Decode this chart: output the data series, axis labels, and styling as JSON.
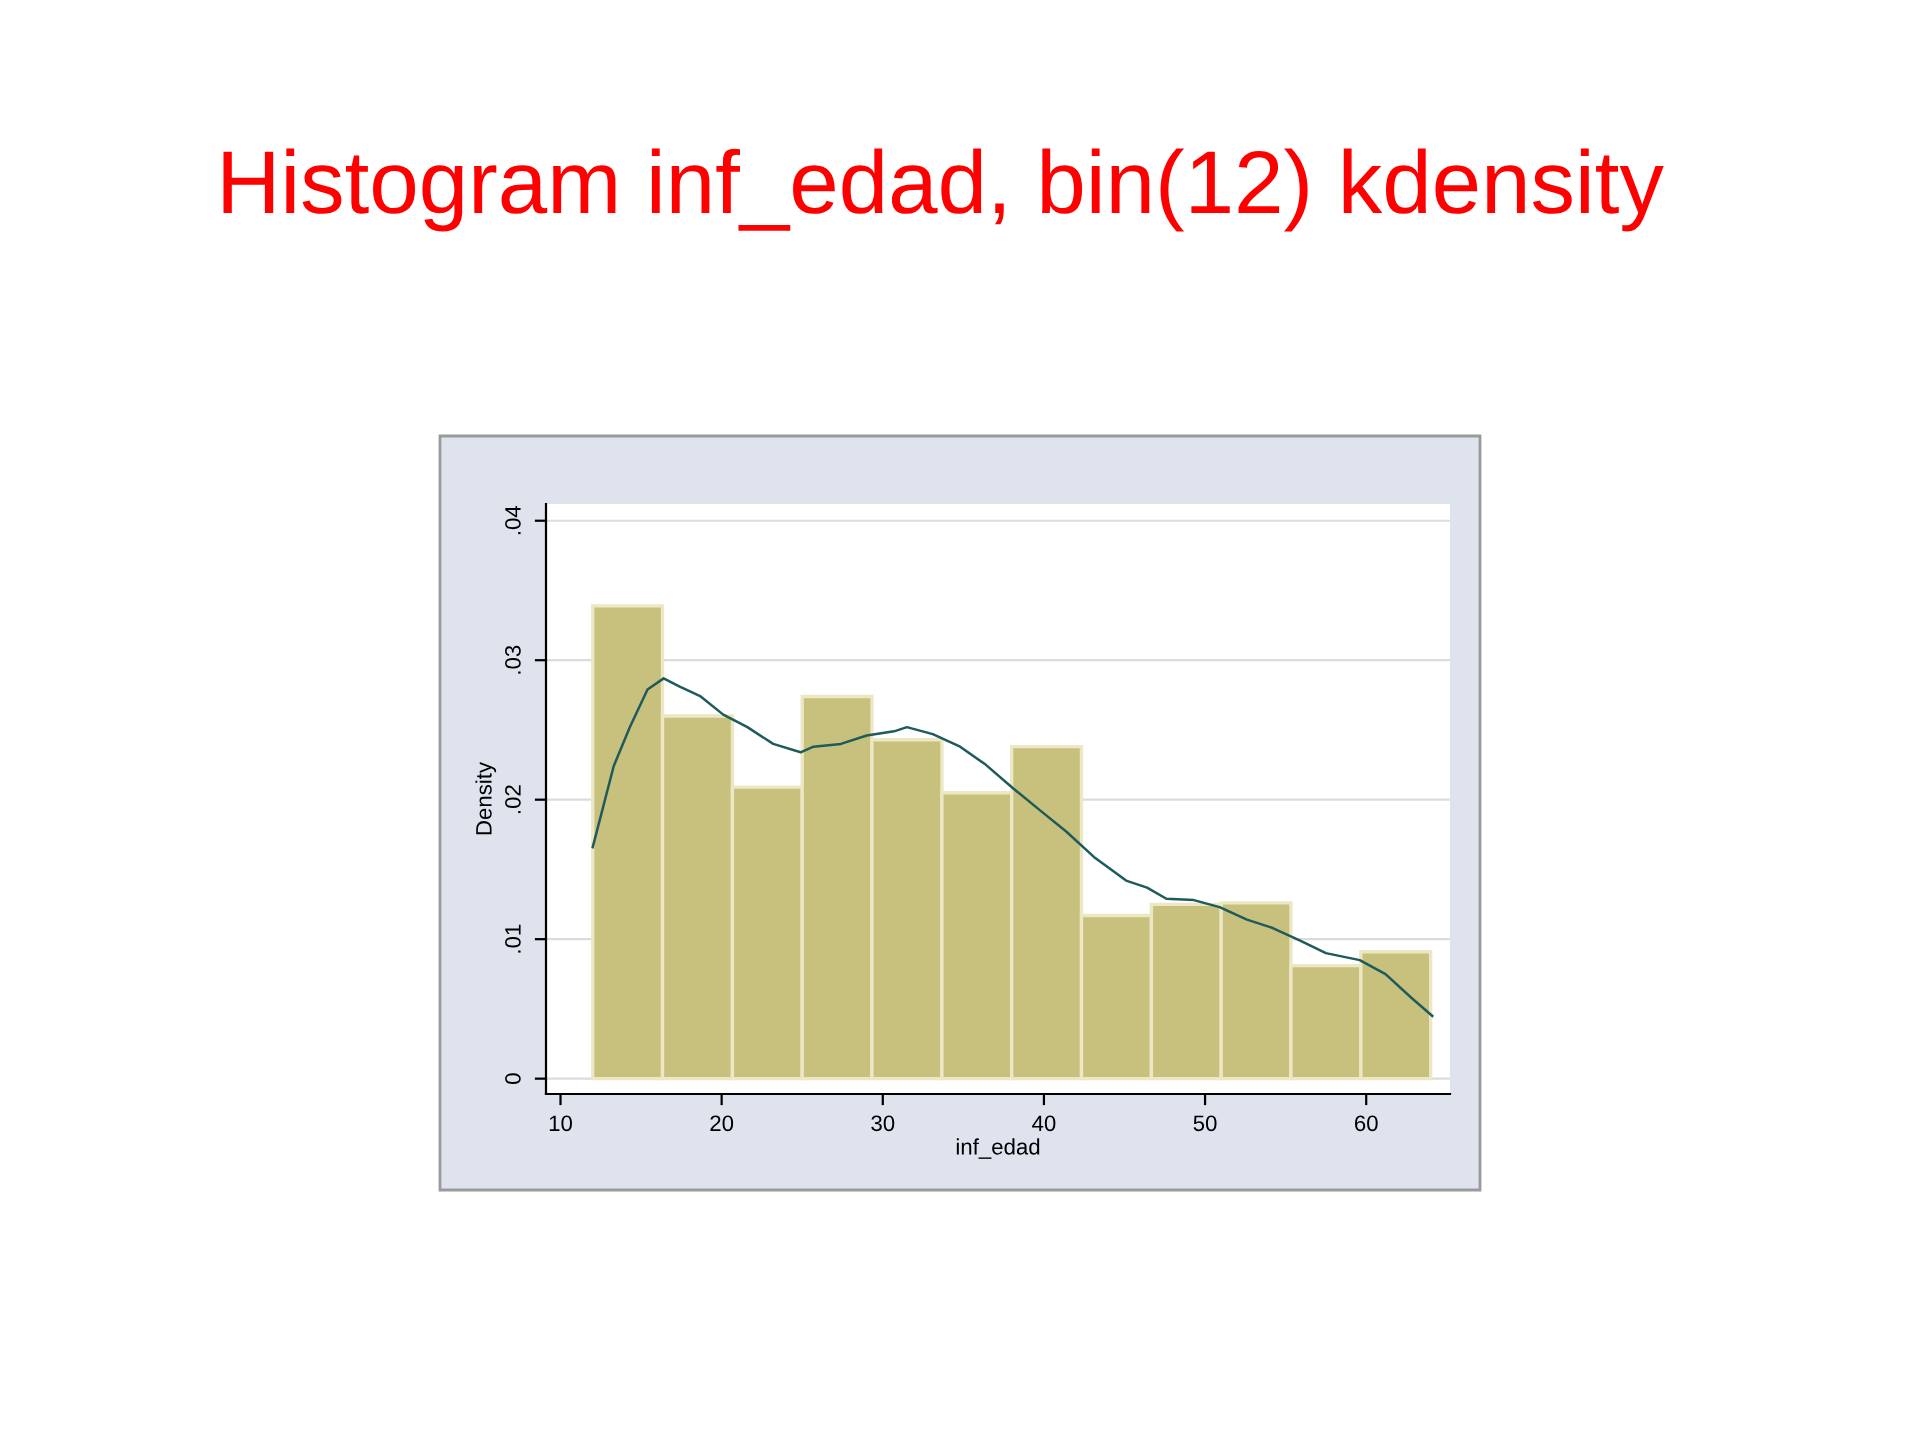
{
  "chart_data": {
    "type": "histogram",
    "title": "Histogram inf_edad, bin(12) kdensity",
    "xlabel": "inf_edad",
    "ylabel": "Density",
    "bins": [
      12,
      16.33,
      20.67,
      25,
      29.33,
      33.67,
      38,
      42.33,
      46.67,
      51,
      55.33,
      59.67,
      64
    ],
    "values": [
      0.0339,
      0.026,
      0.0209,
      0.0274,
      0.0243,
      0.0205,
      0.0238,
      0.0117,
      0.0125,
      0.0126,
      0.0081,
      0.0091
    ],
    "color": "#c8c17e",
    "series": [
      {
        "type": "line",
        "color": "#1f5b5b",
        "x": [
          12,
          13.3,
          14.3,
          15.4,
          16.4,
          17.4,
          18.7,
          20.1,
          21.6,
          23.2,
          24.9,
          25.7,
          27.4,
          29.0,
          30.7,
          31.5,
          33.1,
          34.8,
          36.4,
          38.1,
          39.8,
          41.4,
          43.1,
          45.1,
          46.4,
          47.6,
          49.3,
          50.9,
          52.6,
          54.2,
          55.9,
          57.5,
          59.6,
          61.2,
          62.8,
          64.1
        ],
        "values": [
          0.0166,
          0.0224,
          0.0252,
          0.0279,
          0.0287,
          0.0281,
          0.0274,
          0.0261,
          0.0252,
          0.024,
          0.0234,
          0.0238,
          0.024,
          0.0246,
          0.0249,
          0.0252,
          0.0247,
          0.0238,
          0.0225,
          0.0208,
          0.0192,
          0.0177,
          0.0159,
          0.0142,
          0.0137,
          0.0129,
          0.0128,
          0.0123,
          0.0114,
          0.0108,
          0.0099,
          0.009,
          0.0085,
          0.0075,
          0.0058,
          0.0045
        ]
      }
    ],
    "xlim": [
      9.1,
      65.2
    ],
    "ylim": [
      -0.0011,
      0.0412
    ],
    "xticks": [
      10,
      20,
      30,
      40,
      50,
      60
    ],
    "yticks": [
      0,
      {
        "value": 0.01,
        "label": ".01"
      },
      {
        "value": 0.02,
        "label": ".02"
      },
      {
        "value": 0.03,
        "label": ".03"
      },
      {
        "value": 0.04,
        "label": ".04"
      }
    ],
    "grid": "y",
    "legend": false
  }
}
